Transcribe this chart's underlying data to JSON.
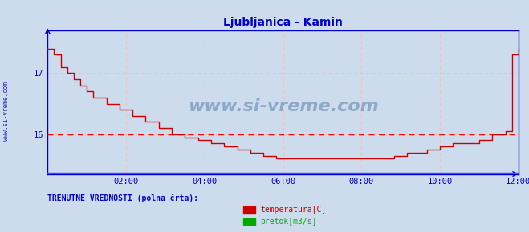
{
  "title": "Ljubljanica - Kamin",
  "title_color": "#0000cc",
  "bg_color": "#ccdcec",
  "plot_bg_color": "#ccdcec",
  "axis_color": "#0000cc",
  "grid_color": "#ffbbbb",
  "watermark_text": "www.si-vreme.com",
  "watermark_color": "#7799bb",
  "sidebar_text": "www.si-vreme.com",
  "sidebar_color": "#0000aa",
  "dashed_line_y": 16.0,
  "dashed_line_color": "#ff0000",
  "temp_line_color": "#cc0000",
  "pretok_line_color": "#4444ff",
  "ylim_min": 15.35,
  "ylim_max": 17.7,
  "xlim_min": 0,
  "xlim_max": 144,
  "xtick_positions": [
    24,
    48,
    72,
    96,
    120,
    144
  ],
  "xtick_labels": [
    "02:00",
    "04:00",
    "06:00",
    "08:00",
    "10:00",
    "12:00"
  ],
  "ytick_positions": [
    16,
    17
  ],
  "ytick_labels": [
    "16",
    "17"
  ],
  "legend_title": "TRENUTNE VREDNOSTI (polna črta):",
  "legend_title_color": "#0000cc",
  "legend_temp_label": "temperatura[C]",
  "legend_pretok_label": "pretok[m3/s]",
  "legend_temp_color": "#cc0000",
  "legend_pretok_color": "#00aa00",
  "temp_data_x": [
    0,
    2,
    4,
    6,
    8,
    10,
    12,
    14,
    18,
    22,
    26,
    30,
    34,
    38,
    42,
    46,
    50,
    54,
    58,
    62,
    66,
    70,
    74,
    78,
    82,
    86,
    90,
    94,
    100,
    106,
    110,
    116,
    120,
    124,
    128,
    132,
    136,
    140,
    142,
    144
  ],
  "temp_data_y": [
    17.4,
    17.3,
    17.1,
    17.0,
    16.9,
    16.8,
    16.7,
    16.6,
    16.5,
    16.4,
    16.3,
    16.2,
    16.1,
    16.0,
    15.95,
    15.9,
    15.85,
    15.8,
    15.75,
    15.7,
    15.65,
    15.6,
    15.6,
    15.6,
    15.6,
    15.6,
    15.6,
    15.6,
    15.6,
    15.65,
    15.7,
    15.75,
    15.8,
    15.85,
    15.85,
    15.9,
    16.0,
    16.05,
    17.3,
    17.4
  ]
}
